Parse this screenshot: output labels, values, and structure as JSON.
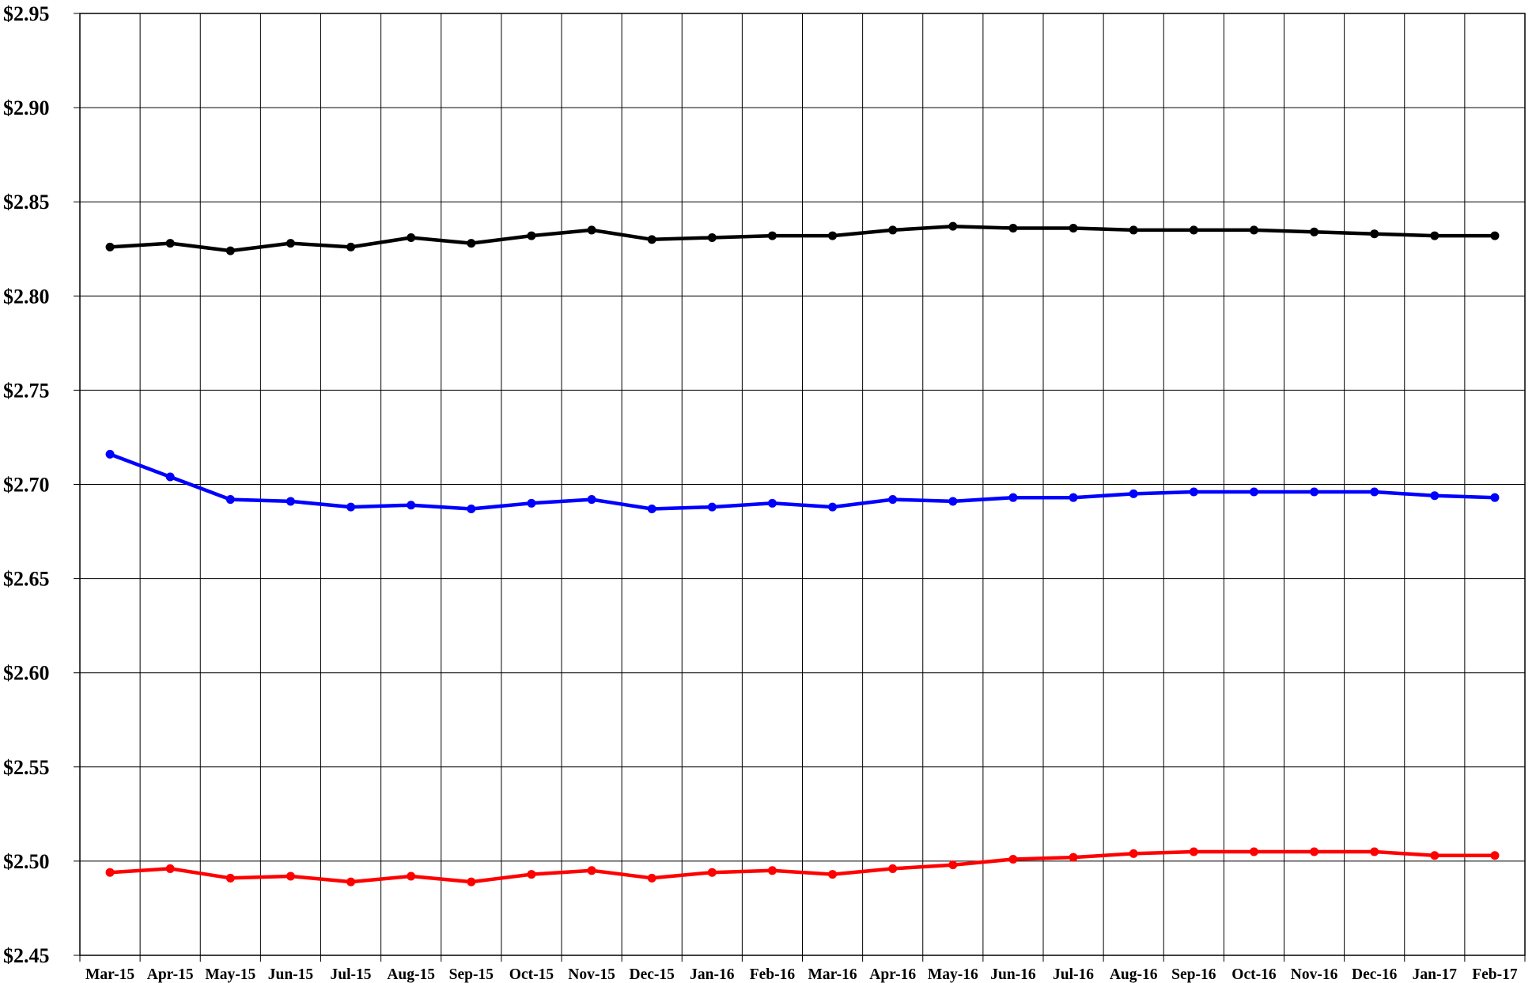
{
  "chart_data": {
    "type": "line",
    "title": "",
    "xlabel": "",
    "ylabel": "",
    "categories": [
      "Mar-15",
      "Apr-15",
      "May-15",
      "Jun-15",
      "Jul-15",
      "Aug-15",
      "Sep-15",
      "Oct-15",
      "Nov-15",
      "Dec-15",
      "Jan-16",
      "Feb-16",
      "Mar-16",
      "Apr-16",
      "May-16",
      "Jun-16",
      "Jul-16",
      "Aug-16",
      "Sep-16",
      "Oct-16",
      "Nov-16",
      "Dec-16",
      "Jan-17",
      "Feb-17"
    ],
    "ylim": [
      2.45,
      2.95
    ],
    "yticks": [
      2.45,
      2.5,
      2.55,
      2.6,
      2.65,
      2.7,
      2.75,
      2.8,
      2.85,
      2.9,
      2.95
    ],
    "ytick_labels": [
      "$2.45",
      "$2.50",
      "$2.55",
      "$2.60",
      "$2.65",
      "$2.70",
      "$2.75",
      "$2.80",
      "$2.85",
      "$2.90",
      "$2.95"
    ],
    "grid": true,
    "legend": "none",
    "series": [
      {
        "color": "#000000",
        "values": [
          2.826,
          2.828,
          2.824,
          2.828,
          2.826,
          2.831,
          2.828,
          2.832,
          2.835,
          2.83,
          2.831,
          2.832,
          2.832,
          2.835,
          2.837,
          2.836,
          2.836,
          2.835,
          2.835,
          2.835,
          2.834,
          2.833,
          2.832,
          2.832
        ]
      },
      {
        "color": "#0000ff",
        "values": [
          2.716,
          2.704,
          2.692,
          2.691,
          2.688,
          2.689,
          2.687,
          2.69,
          2.692,
          2.687,
          2.688,
          2.69,
          2.688,
          2.692,
          2.691,
          2.693,
          2.693,
          2.695,
          2.696,
          2.696,
          2.696,
          2.696,
          2.694,
          2.693
        ]
      },
      {
        "color": "#ff0000",
        "values": [
          2.494,
          2.496,
          2.491,
          2.492,
          2.489,
          2.492,
          2.489,
          2.493,
          2.495,
          2.491,
          2.494,
          2.495,
          2.493,
          2.496,
          2.498,
          2.501,
          2.502,
          2.504,
          2.505,
          2.505,
          2.505,
          2.505,
          2.503,
          2.503
        ]
      }
    ]
  }
}
